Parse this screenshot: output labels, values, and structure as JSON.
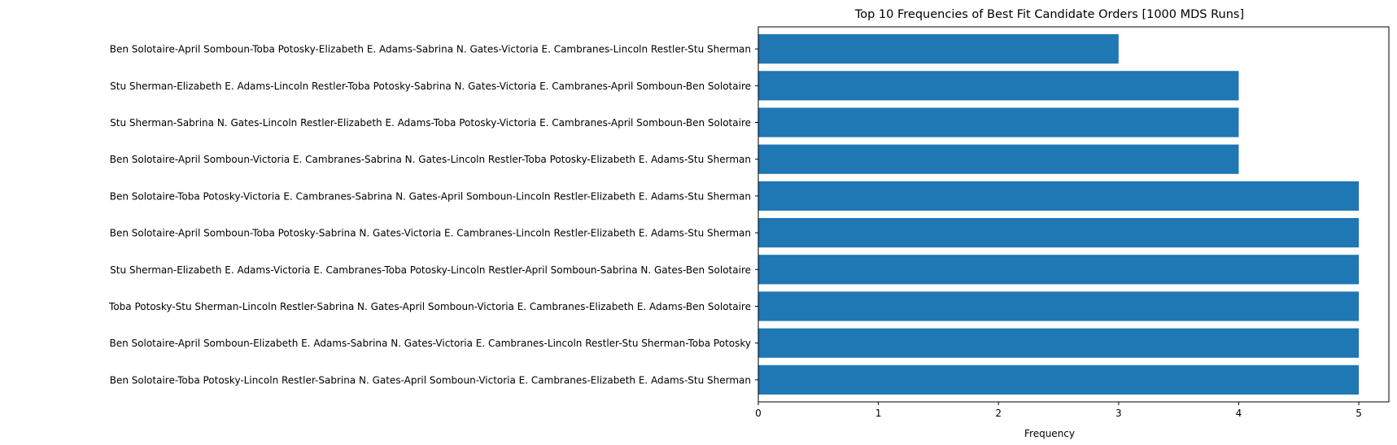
{
  "chart_data": {
    "type": "bar",
    "orientation": "horizontal",
    "title": "Top 10 Frequencies of Best Fit Candidate Orders [1000 MDS Runs]",
    "xlabel": "Frequency",
    "ylabel": "",
    "xlim": [
      0,
      5.25
    ],
    "xticks": [
      0,
      1,
      2,
      3,
      4,
      5
    ],
    "bar_color": "#1f77b4",
    "grid": false,
    "legend": "none",
    "categories": [
      "Ben Solotaire-April Somboun-Toba Potosky-Elizabeth E. Adams-Sabrina N. Gates-Victoria E. Cambranes-Lincoln Restler-Stu Sherman",
      "Stu Sherman-Elizabeth E. Adams-Lincoln Restler-Toba Potosky-Sabrina N. Gates-Victoria E. Cambranes-April Somboun-Ben Solotaire",
      "Stu Sherman-Sabrina N. Gates-Lincoln Restler-Elizabeth E. Adams-Toba Potosky-Victoria E. Cambranes-April Somboun-Ben Solotaire",
      "Ben Solotaire-April Somboun-Victoria E. Cambranes-Sabrina N. Gates-Lincoln Restler-Toba Potosky-Elizabeth E. Adams-Stu Sherman",
      "Ben Solotaire-Toba Potosky-Victoria E. Cambranes-Sabrina N. Gates-April Somboun-Lincoln Restler-Elizabeth E. Adams-Stu Sherman",
      "Ben Solotaire-April Somboun-Toba Potosky-Sabrina N. Gates-Victoria E. Cambranes-Lincoln Restler-Elizabeth E. Adams-Stu Sherman",
      "Stu Sherman-Elizabeth E. Adams-Victoria E. Cambranes-Toba Potosky-Lincoln Restler-April Somboun-Sabrina N. Gates-Ben Solotaire",
      "Toba Potosky-Stu Sherman-Lincoln Restler-Sabrina N. Gates-April Somboun-Victoria E. Cambranes-Elizabeth E. Adams-Ben Solotaire",
      "Ben Solotaire-April Somboun-Elizabeth E. Adams-Sabrina N. Gates-Victoria E. Cambranes-Lincoln Restler-Stu Sherman-Toba Potosky",
      "Ben Solotaire-Toba Potosky-Lincoln Restler-Sabrina N. Gates-April Somboun-Victoria E. Cambranes-Elizabeth E. Adams-Stu Sherman"
    ],
    "values": [
      3,
      4,
      4,
      4,
      5,
      5,
      5,
      5,
      5,
      5
    ]
  }
}
